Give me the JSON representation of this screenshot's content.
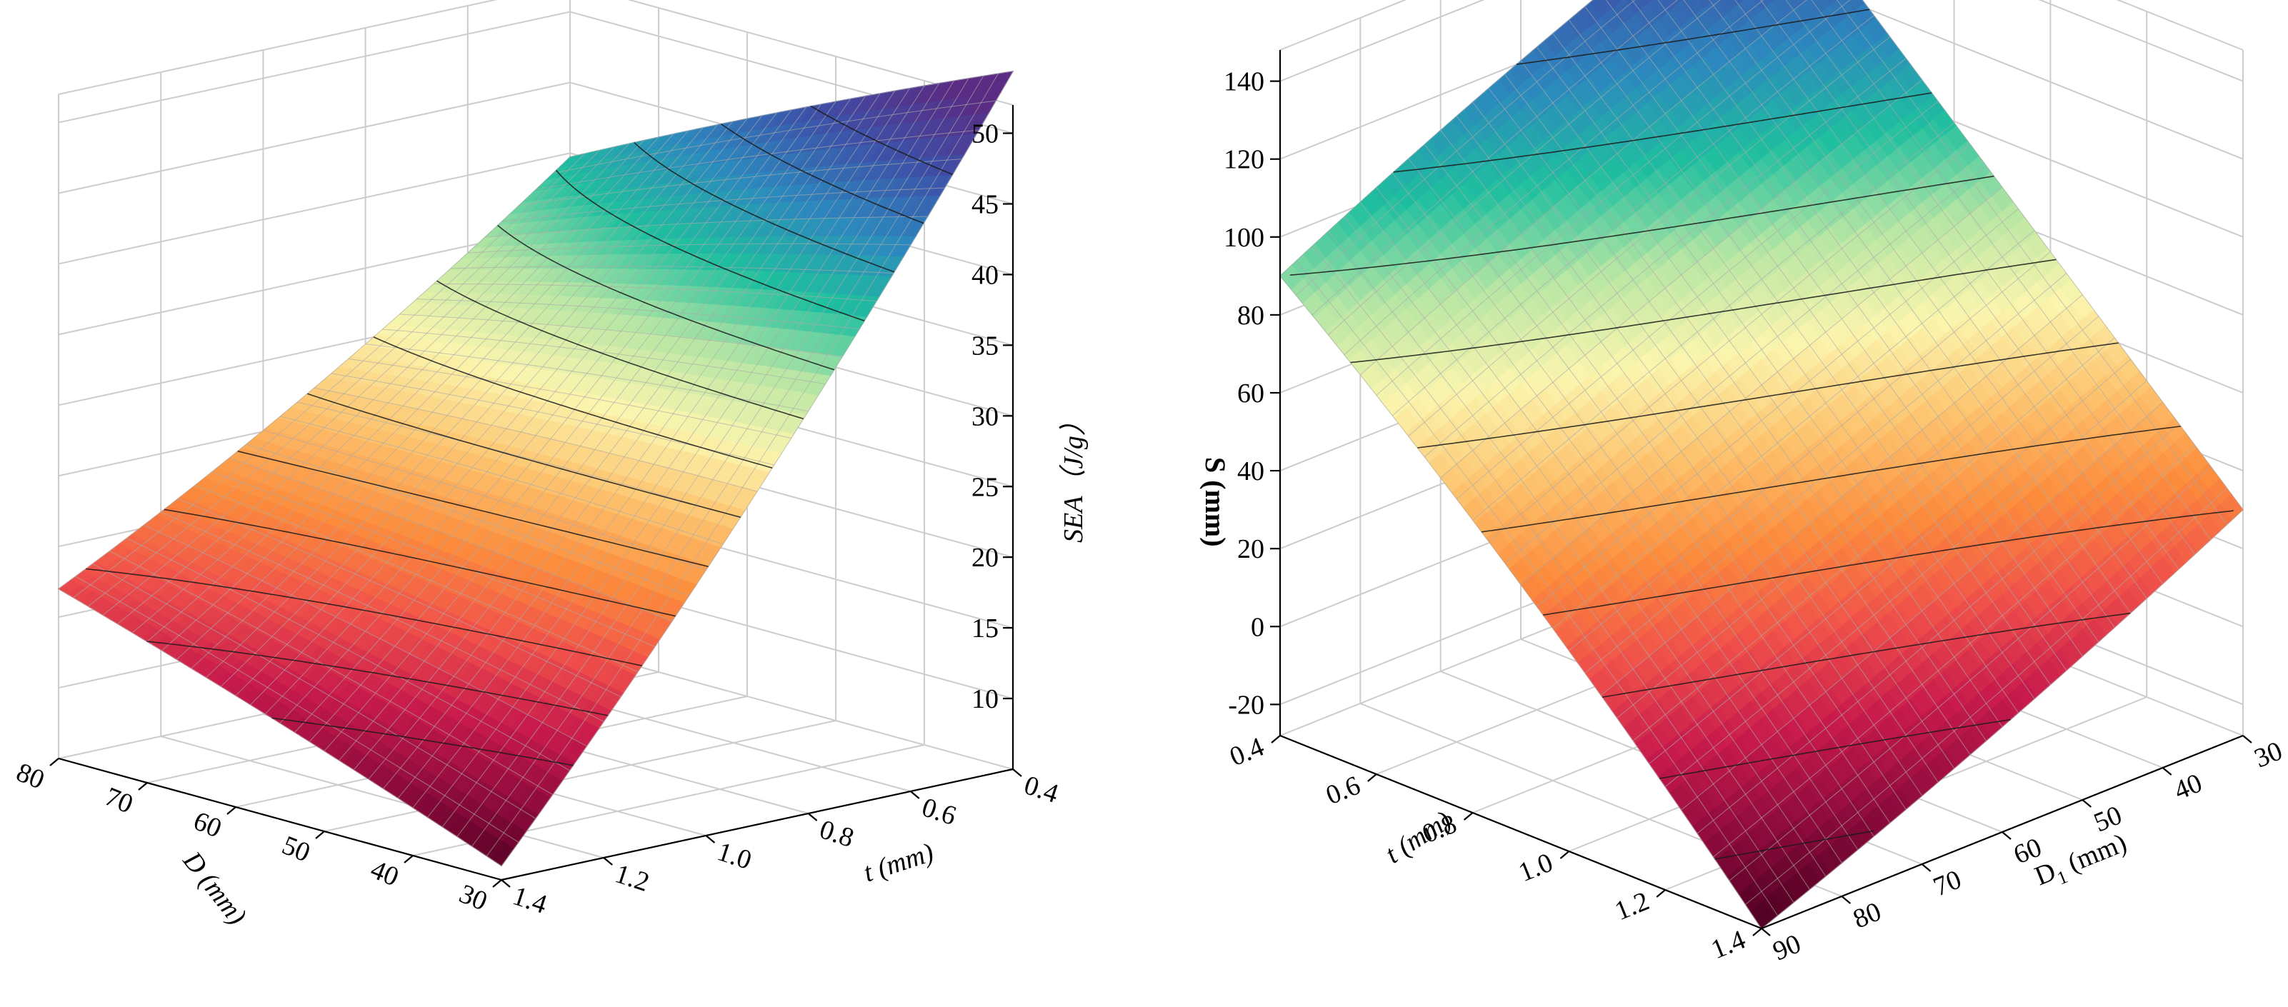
{
  "colors": {
    "colormap": [
      "#4a0020",
      "#8c0a3c",
      "#c81a4c",
      "#f0504a",
      "#fc8c3c",
      "#fdc36e",
      "#fbf5ae",
      "#b7e6a4",
      "#1fbf9f",
      "#2c88be",
      "#3d50a8",
      "#5a2c84"
    ],
    "grid": "#cccccc",
    "mesh": "#aaaaaa",
    "contour": "#1a1a1a",
    "axis": "#000000"
  },
  "chart_data": [
    {
      "type": "surface3d",
      "zlabel": "SEA（J/g）",
      "xlabel": "t (mm)",
      "ylabel": "D (mm)",
      "x_label_text": "t",
      "x_unit_text": "(mm)",
      "y_label_text": "D",
      "y_label_sub": "1",
      "y_unit_text": "(mm)",
      "x_axis": {
        "range": [
          0.4,
          1.4
        ],
        "ticks": [
          "0.4",
          "0.6",
          "0.8",
          "1.0",
          "1.2",
          "1.4"
        ]
      },
      "y_axis": {
        "range": [
          30,
          80
        ],
        "ticks": [
          "30",
          "40",
          "50",
          "60",
          "70",
          "80"
        ]
      },
      "z_axis": {
        "range": [
          5,
          52
        ],
        "ticks": [
          "10",
          "15",
          "20",
          "25",
          "30",
          "35",
          "40",
          "45",
          "50"
        ]
      },
      "corner_values": [
        {
          "t": 0.4,
          "D": 30,
          "SEA": 51
        },
        {
          "t": 0.4,
          "D": 80,
          "SEA": 38
        },
        {
          "t": 1.4,
          "D": 80,
          "SEA": 17
        },
        {
          "t": 1.4,
          "D": 30,
          "SEA": 6
        }
      ],
      "contour_levels": [
        12,
        15,
        18,
        21,
        24,
        27,
        30,
        33,
        36,
        39,
        42,
        45,
        48
      ]
    },
    {
      "type": "surface3d",
      "zlabel": "S (mm)",
      "xlabel": "t (mm)",
      "ylabel": "D1 (mm)",
      "x_label_text": "t",
      "x_unit_text": "(mm)",
      "y_label_text": "D",
      "y_label_sub": "1",
      "y_unit_text": "(mm)",
      "x_axis": {
        "range": [
          0.4,
          1.4
        ],
        "ticks": [
          "0.4",
          "0.6",
          "0.8",
          "1.0",
          "1.2",
          "1.4"
        ]
      },
      "y_axis": {
        "range": [
          30,
          90
        ],
        "ticks": [
          "30",
          "40",
          "50",
          "60",
          "70",
          "80",
          "90"
        ]
      },
      "z_axis": {
        "range": [
          -28,
          148
        ],
        "ticks": [
          "-20",
          "0",
          "20",
          "40",
          "60",
          "80",
          "100",
          "120",
          "140"
        ]
      },
      "corner_values": [
        {
          "t": 0.4,
          "D1": 90,
          "S": 90
        },
        {
          "t": 0.4,
          "D1": 30,
          "S": 146
        },
        {
          "t": 1.4,
          "D1": 30,
          "S": 30
        },
        {
          "t": 1.4,
          "D1": 90,
          "S": -28
        }
      ],
      "contour_levels": [
        -15,
        0,
        15,
        30,
        45,
        60,
        75,
        90,
        105,
        120,
        135
      ]
    }
  ]
}
